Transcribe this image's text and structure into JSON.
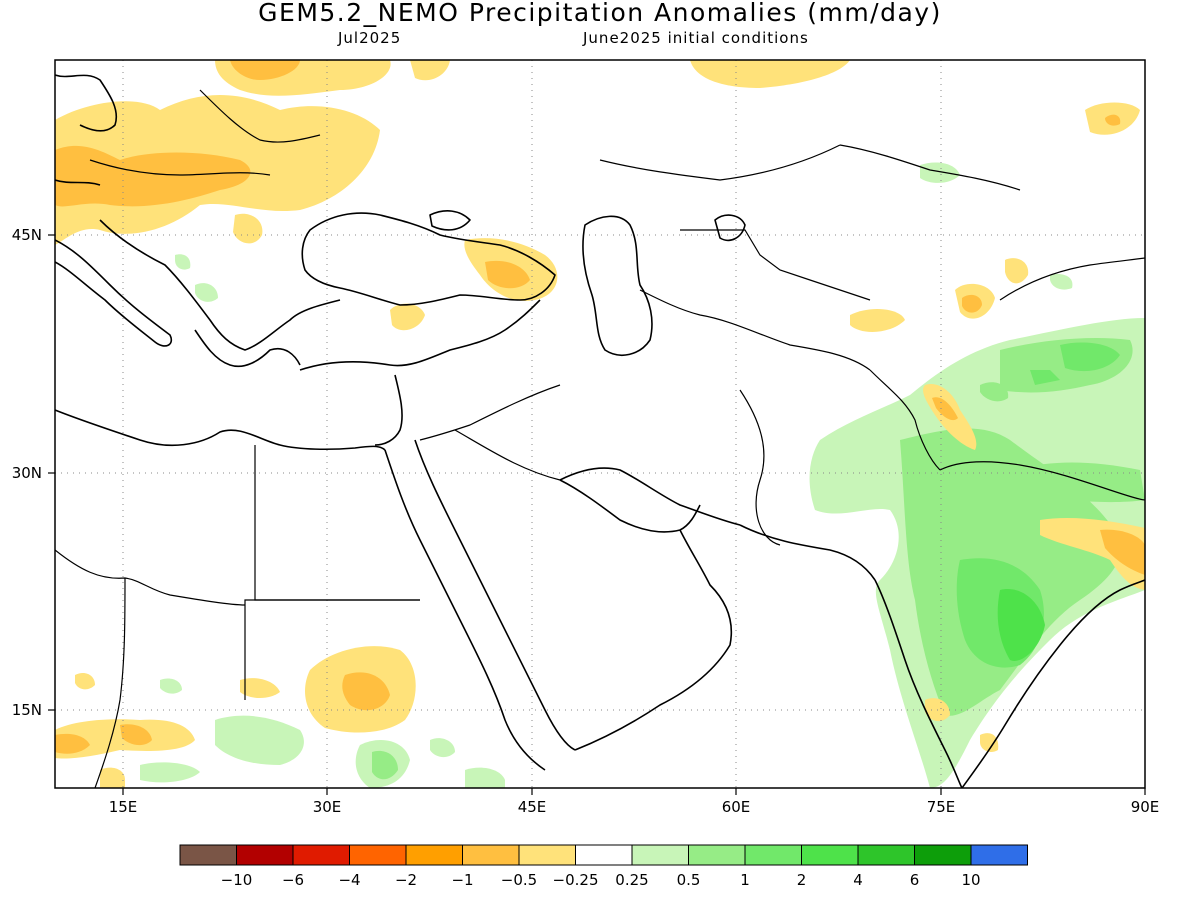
{
  "title": "GEM5.2_NEMO Precipitation Anomalies (mm/day)",
  "subtitle_left": "Jul2025",
  "subtitle_right": "June2025 initial conditions",
  "map": {
    "lon_range": [
      10,
      90
    ],
    "lat_range": [
      10,
      56
    ],
    "lon_ticks": [
      "15E",
      "30E",
      "45E",
      "60E",
      "75E",
      "90E"
    ],
    "lat_ticks": [
      "45N",
      "30N",
      "15N"
    ],
    "gridlines": "dotted"
  },
  "colorbar": {
    "colors": [
      "#7a5546",
      "#b20000",
      "#e01b00",
      "#ff6400",
      "#ff9f00",
      "#ffbf40",
      "#ffe27a",
      "#ffffff",
      "#c8f5b8",
      "#96ec86",
      "#71e86a",
      "#4ee24a",
      "#2ec52a",
      "#0d9e0a",
      "#2f6ee8"
    ],
    "labels": [
      "−10",
      "−6",
      "−4",
      "−2",
      "−1",
      "−0.5",
      "−0.25",
      "0.25",
      "0.5",
      "1",
      "2",
      "4",
      "6",
      "10"
    ]
  }
}
